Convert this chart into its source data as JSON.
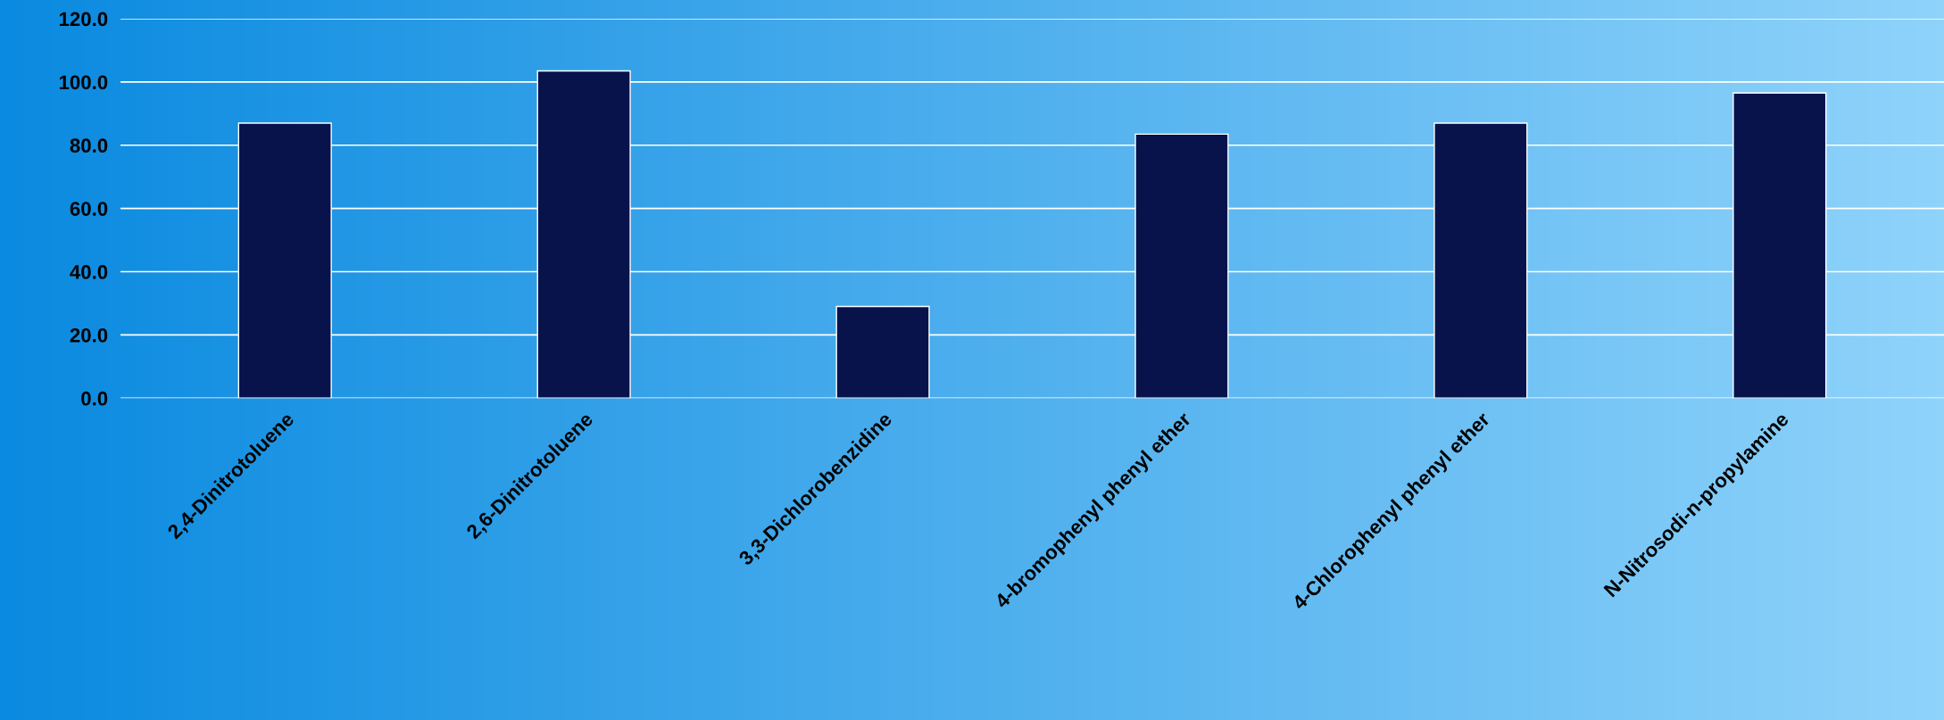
{
  "chart_data": {
    "type": "bar",
    "categories": [
      "2,4-Dinitrotoluene",
      "2,6-Dinitrotoluene",
      "3,3-Dichlorobenzidine",
      "4-bromophenyl phenyl ether",
      "4-Chlorophenyl phenyl ether",
      "N-Nitrosodi-n-propylamine"
    ],
    "values": [
      87,
      103.5,
      29,
      83.5,
      87,
      96.5
    ],
    "color": "#08134c",
    "ylim": [
      0,
      120
    ],
    "yticks": [
      {
        "value": 0,
        "label": "0.0"
      },
      {
        "value": 20,
        "label": "20.0"
      },
      {
        "value": 40,
        "label": "40.0"
      },
      {
        "value": 60,
        "label": "60.0"
      },
      {
        "value": 80,
        "label": "80.0"
      },
      {
        "value": 100,
        "label": "100.0"
      },
      {
        "value": 120,
        "label": "120.0"
      }
    ],
    "grid": "y",
    "legend": false
  }
}
